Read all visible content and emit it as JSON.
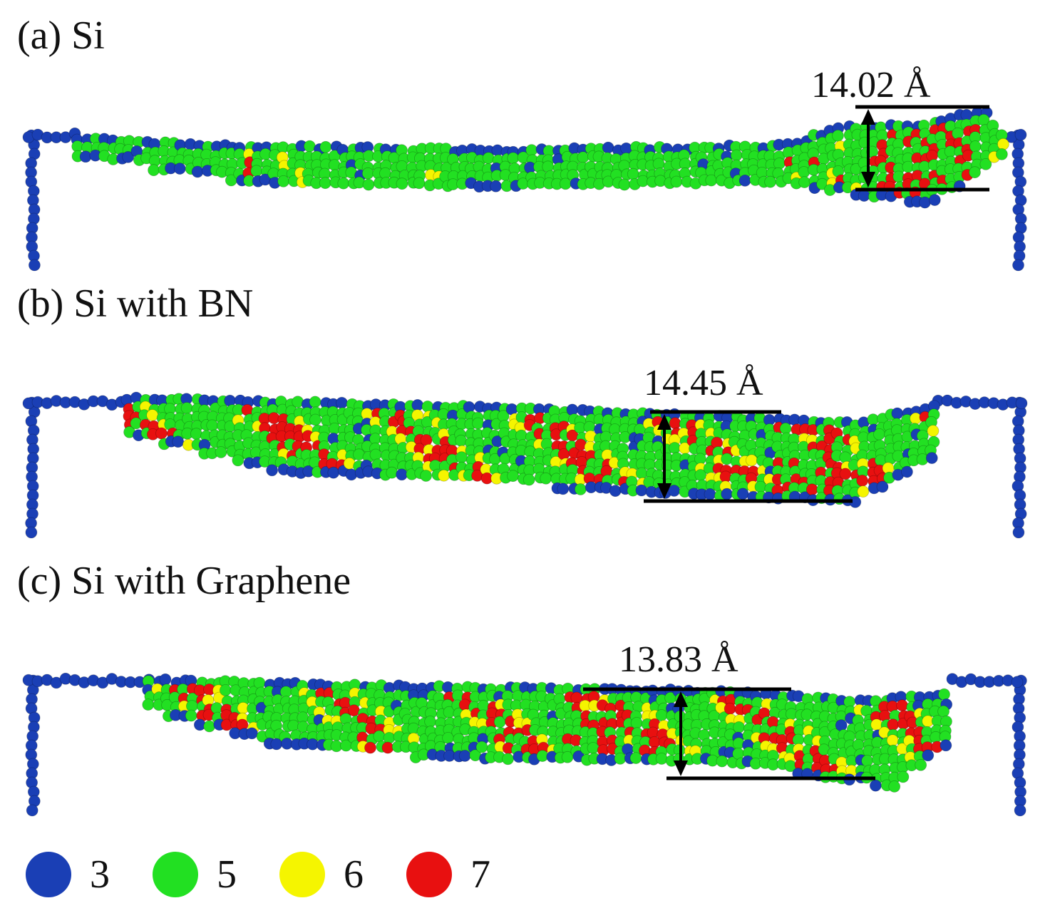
{
  "panels": [
    {
      "id": "a",
      "label": "(a) Si",
      "measurement": "14.02 Å"
    },
    {
      "id": "b",
      "label": "(b) Si with BN",
      "measurement": "14.45 Å"
    },
    {
      "id": "c",
      "label": "(c) Si with Graphene",
      "measurement": "13.83 Å"
    }
  ],
  "legend": [
    {
      "value": "3",
      "color": "#1a3fb5"
    },
    {
      "value": "5",
      "color": "#22e022"
    },
    {
      "value": "6",
      "color": "#f5f500"
    },
    {
      "value": "7",
      "color": "#e81010"
    }
  ],
  "colors": {
    "line": "#000000"
  }
}
